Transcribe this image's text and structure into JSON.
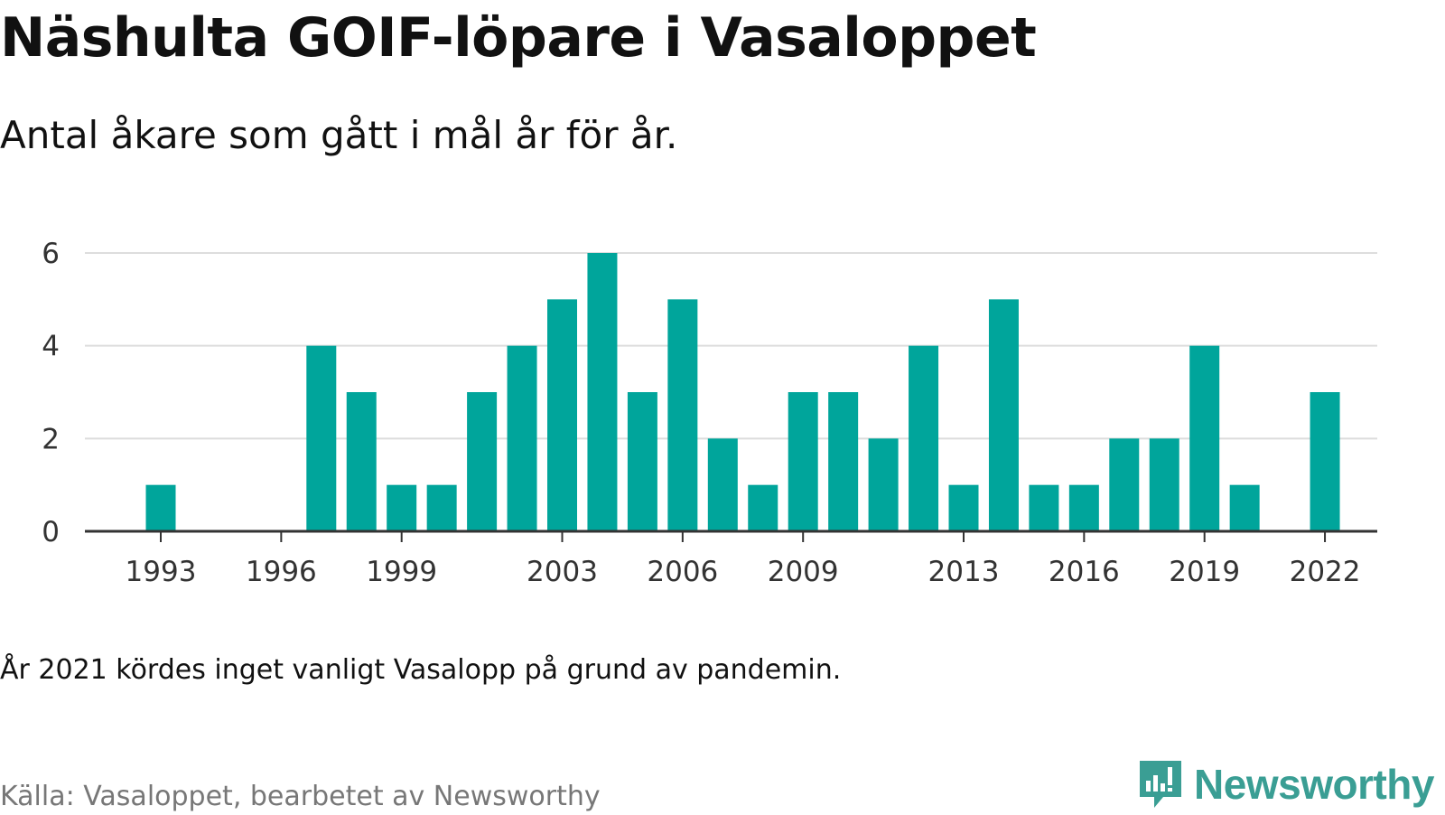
{
  "header": {
    "title": "Näshulta GOIF-löpare i Vasaloppet",
    "subtitle": "Antal åkare som gått i mål år för år."
  },
  "footer": {
    "note": "År 2021 kördes inget vanligt Vasalopp på grund av pandemin.",
    "source": "Källa: Vasaloppet, bearbetet av Newsworthy"
  },
  "logo": {
    "icon": "newsworthy-chart-icon",
    "text": "Newsworthy"
  },
  "colors": {
    "bar": "#00A59B",
    "grid": "#dddddd",
    "axis": "#333333",
    "logo": "#3a9e94"
  },
  "chart_data": {
    "type": "bar",
    "title": "Näshulta GOIF-löpare i Vasaloppet",
    "subtitle": "Antal åkare som gått i mål år för år.",
    "xlabel": "",
    "ylabel": "",
    "categories": [
      1993,
      1994,
      1995,
      1996,
      1997,
      1998,
      1999,
      2000,
      2001,
      2002,
      2003,
      2004,
      2005,
      2006,
      2007,
      2008,
      2009,
      2010,
      2011,
      2012,
      2013,
      2014,
      2015,
      2016,
      2017,
      2018,
      2019,
      2020,
      2021,
      2022
    ],
    "values": [
      1,
      0,
      0,
      0,
      4,
      3,
      1,
      1,
      3,
      4,
      5,
      6,
      3,
      5,
      2,
      1,
      3,
      3,
      2,
      4,
      1,
      5,
      1,
      1,
      2,
      2,
      4,
      1,
      0,
      3
    ],
    "x_ticks": [
      "1993",
      "1996",
      "1999",
      "2003",
      "2006",
      "2009",
      "2013",
      "2016",
      "2019",
      "2022"
    ],
    "y_ticks": [
      "0",
      "2",
      "4",
      "6"
    ],
    "ylim": [
      0,
      6
    ],
    "grid": true,
    "legend": "none"
  }
}
